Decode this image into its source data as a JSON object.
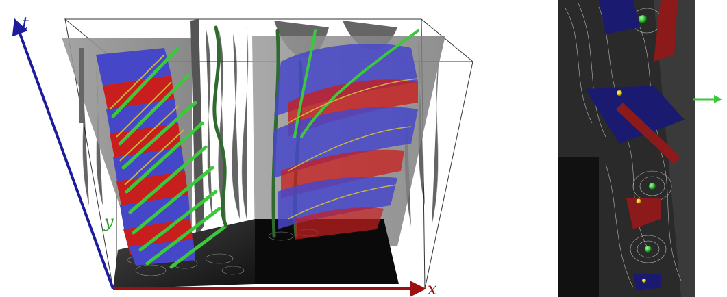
{
  "left_panel": {
    "axis_labels": {
      "t": "t",
      "x": "x",
      "y": "y"
    },
    "colors": {
      "t_axis": "#1c1c9c",
      "x_axis": "#9c1010",
      "y_label": "#2aa02a",
      "surface_blue": "#4646c8",
      "surface_red": "#c81e1e",
      "line_green": "#3cc83c",
      "line_yellow": "#c8b43c",
      "tube_dark_green": "#2f6a2f",
      "slab_gray": "#8f8f8f"
    }
  },
  "right_panel": {
    "colors": {
      "background": "#2a2a2a",
      "marker_green": "#3cc83c",
      "marker_yellow": "#e6c800",
      "surface_blue": "#1a1a70",
      "surface_red": "#8c1a1a",
      "arrow_green": "#3cc83c"
    }
  }
}
